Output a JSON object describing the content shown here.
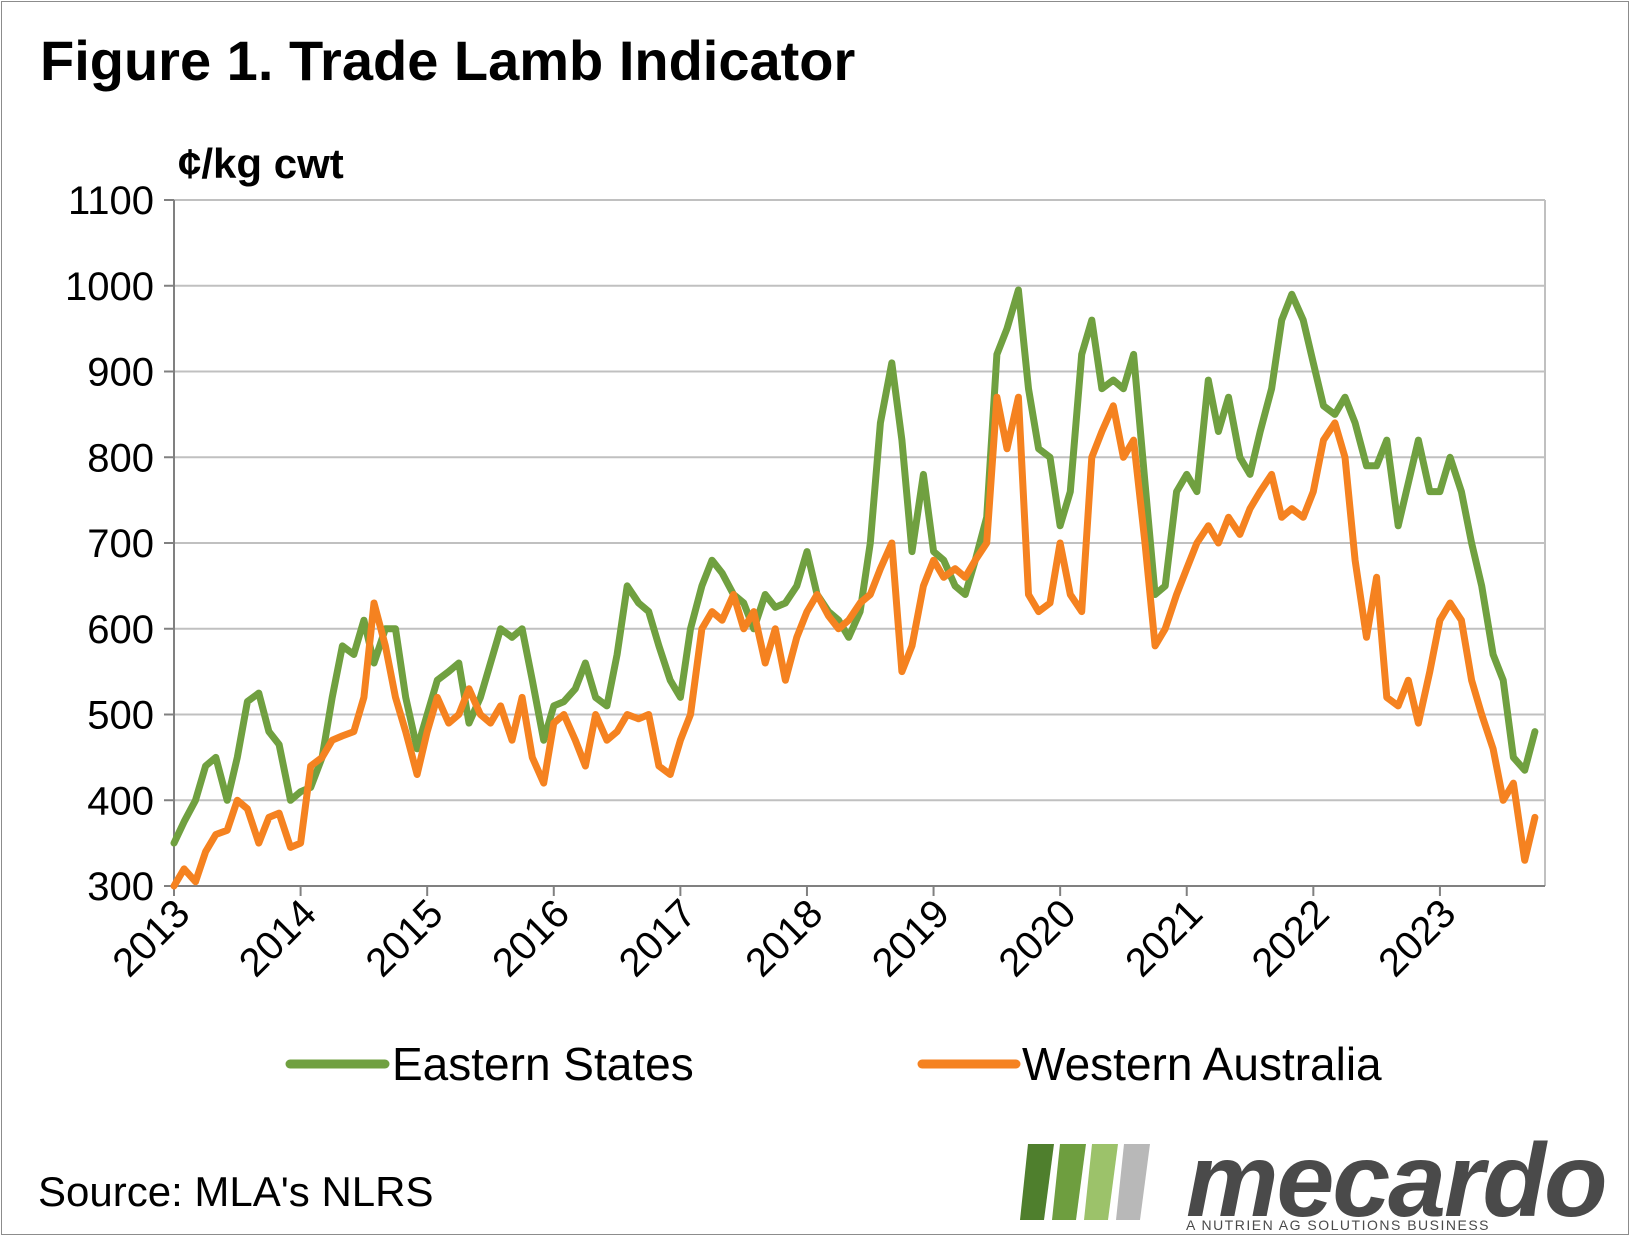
{
  "title": "Figure 1. Trade Lamb Indicator",
  "source": "Source: MLA's NLRS",
  "logo": {
    "word": "mecardo",
    "tagline": "A NUTRIEN AG SOLUTIONS BUSINESS"
  },
  "colors": {
    "eastern": "#70A040",
    "western": "#F58220",
    "grid": "#C0C0C0",
    "axis": "#808080"
  },
  "chart_data": {
    "type": "line",
    "title": "Figure 1. Trade Lamb Indicator",
    "ylabel": "¢/kg cwt",
    "xlabel": "",
    "ylim": [
      300,
      1100
    ],
    "yticks": [
      300,
      400,
      500,
      600,
      700,
      800,
      900,
      1000,
      1100
    ],
    "xlim": [
      2013,
      2023.83
    ],
    "xticks": [
      "2013",
      "2014",
      "2015",
      "2016",
      "2017",
      "2018",
      "2019",
      "2020",
      "2021",
      "2022",
      "2023"
    ],
    "grid": "horizontal",
    "legend": "bottom",
    "series": [
      {
        "name": "Eastern States",
        "color": "#70A040",
        "points": [
          [
            2013.0,
            350
          ],
          [
            2013.08,
            375
          ],
          [
            2013.17,
            400
          ],
          [
            2013.25,
            440
          ],
          [
            2013.33,
            450
          ],
          [
            2013.42,
            400
          ],
          [
            2013.5,
            450
          ],
          [
            2013.58,
            515
          ],
          [
            2013.67,
            525
          ],
          [
            2013.75,
            480
          ],
          [
            2013.83,
            465
          ],
          [
            2013.92,
            400
          ],
          [
            2014.0,
            410
          ],
          [
            2014.08,
            415
          ],
          [
            2014.17,
            450
          ],
          [
            2014.25,
            520
          ],
          [
            2014.33,
            580
          ],
          [
            2014.42,
            570
          ],
          [
            2014.5,
            610
          ],
          [
            2014.58,
            560
          ],
          [
            2014.67,
            600
          ],
          [
            2014.75,
            600
          ],
          [
            2014.83,
            520
          ],
          [
            2014.92,
            460
          ],
          [
            2015.0,
            500
          ],
          [
            2015.08,
            540
          ],
          [
            2015.17,
            550
          ],
          [
            2015.25,
            560
          ],
          [
            2015.33,
            490
          ],
          [
            2015.42,
            520
          ],
          [
            2015.5,
            560
          ],
          [
            2015.58,
            600
          ],
          [
            2015.67,
            590
          ],
          [
            2015.75,
            600
          ],
          [
            2015.83,
            540
          ],
          [
            2015.92,
            470
          ],
          [
            2016.0,
            510
          ],
          [
            2016.08,
            515
          ],
          [
            2016.17,
            530
          ],
          [
            2016.25,
            560
          ],
          [
            2016.33,
            520
          ],
          [
            2016.42,
            510
          ],
          [
            2016.5,
            570
          ],
          [
            2016.58,
            650
          ],
          [
            2016.67,
            630
          ],
          [
            2016.75,
            620
          ],
          [
            2016.83,
            580
          ],
          [
            2016.92,
            540
          ],
          [
            2017.0,
            520
          ],
          [
            2017.08,
            600
          ],
          [
            2017.17,
            650
          ],
          [
            2017.25,
            680
          ],
          [
            2017.33,
            665
          ],
          [
            2017.42,
            640
          ],
          [
            2017.5,
            630
          ],
          [
            2017.58,
            600
          ],
          [
            2017.67,
            640
          ],
          [
            2017.75,
            625
          ],
          [
            2017.83,
            630
          ],
          [
            2017.92,
            650
          ],
          [
            2018.0,
            690
          ],
          [
            2018.08,
            640
          ],
          [
            2018.17,
            620
          ],
          [
            2018.25,
            610
          ],
          [
            2018.33,
            590
          ],
          [
            2018.42,
            620
          ],
          [
            2018.5,
            700
          ],
          [
            2018.58,
            840
          ],
          [
            2018.67,
            910
          ],
          [
            2018.75,
            820
          ],
          [
            2018.83,
            690
          ],
          [
            2018.92,
            780
          ],
          [
            2019.0,
            690
          ],
          [
            2019.08,
            680
          ],
          [
            2019.17,
            650
          ],
          [
            2019.25,
            640
          ],
          [
            2019.33,
            680
          ],
          [
            2019.42,
            730
          ],
          [
            2019.5,
            920
          ],
          [
            2019.58,
            950
          ],
          [
            2019.67,
            995
          ],
          [
            2019.75,
            880
          ],
          [
            2019.83,
            810
          ],
          [
            2019.92,
            800
          ],
          [
            2020.0,
            720
          ],
          [
            2020.08,
            760
          ],
          [
            2020.17,
            920
          ],
          [
            2020.25,
            960
          ],
          [
            2020.33,
            880
          ],
          [
            2020.42,
            890
          ],
          [
            2020.5,
            880
          ],
          [
            2020.58,
            920
          ],
          [
            2020.67,
            770
          ],
          [
            2020.75,
            640
          ],
          [
            2020.83,
            650
          ],
          [
            2020.92,
            760
          ],
          [
            2021.0,
            780
          ],
          [
            2021.08,
            760
          ],
          [
            2021.17,
            890
          ],
          [
            2021.25,
            830
          ],
          [
            2021.33,
            870
          ],
          [
            2021.42,
            800
          ],
          [
            2021.5,
            780
          ],
          [
            2021.58,
            830
          ],
          [
            2021.67,
            880
          ],
          [
            2021.75,
            960
          ],
          [
            2021.83,
            990
          ],
          [
            2021.92,
            960
          ],
          [
            2022.0,
            910
          ],
          [
            2022.08,
            860
          ],
          [
            2022.17,
            850
          ],
          [
            2022.25,
            870
          ],
          [
            2022.33,
            840
          ],
          [
            2022.42,
            790
          ],
          [
            2022.5,
            790
          ],
          [
            2022.58,
            820
          ],
          [
            2022.67,
            720
          ],
          [
            2022.75,
            770
          ],
          [
            2022.83,
            820
          ],
          [
            2022.92,
            760
          ],
          [
            2023.0,
            760
          ],
          [
            2023.08,
            800
          ],
          [
            2023.17,
            760
          ],
          [
            2023.25,
            700
          ],
          [
            2023.33,
            650
          ],
          [
            2023.42,
            570
          ],
          [
            2023.5,
            540
          ],
          [
            2023.58,
            450
          ],
          [
            2023.67,
            435
          ],
          [
            2023.75,
            480
          ]
        ]
      },
      {
        "name": "Western Australia",
        "color": "#F58220",
        "points": [
          [
            2013.0,
            300
          ],
          [
            2013.08,
            320
          ],
          [
            2013.17,
            305
          ],
          [
            2013.25,
            340
          ],
          [
            2013.33,
            360
          ],
          [
            2013.42,
            365
          ],
          [
            2013.5,
            400
          ],
          [
            2013.58,
            390
          ],
          [
            2013.67,
            350
          ],
          [
            2013.75,
            380
          ],
          [
            2013.83,
            385
          ],
          [
            2013.92,
            345
          ],
          [
            2014.0,
            350
          ],
          [
            2014.08,
            440
          ],
          [
            2014.17,
            450
          ],
          [
            2014.25,
            470
          ],
          [
            2014.33,
            475
          ],
          [
            2014.42,
            480
          ],
          [
            2014.5,
            520
          ],
          [
            2014.58,
            630
          ],
          [
            2014.67,
            580
          ],
          [
            2014.75,
            520
          ],
          [
            2014.83,
            480
          ],
          [
            2014.92,
            430
          ],
          [
            2015.0,
            480
          ],
          [
            2015.08,
            520
          ],
          [
            2015.17,
            490
          ],
          [
            2015.25,
            500
          ],
          [
            2015.33,
            530
          ],
          [
            2015.42,
            500
          ],
          [
            2015.5,
            490
          ],
          [
            2015.58,
            510
          ],
          [
            2015.67,
            470
          ],
          [
            2015.75,
            520
          ],
          [
            2015.83,
            450
          ],
          [
            2015.92,
            420
          ],
          [
            2016.0,
            490
          ],
          [
            2016.08,
            500
          ],
          [
            2016.17,
            470
          ],
          [
            2016.25,
            440
          ],
          [
            2016.33,
            500
          ],
          [
            2016.42,
            470
          ],
          [
            2016.5,
            480
          ],
          [
            2016.58,
            500
          ],
          [
            2016.67,
            495
          ],
          [
            2016.75,
            500
          ],
          [
            2016.83,
            440
          ],
          [
            2016.92,
            430
          ],
          [
            2017.0,
            470
          ],
          [
            2017.08,
            500
          ],
          [
            2017.17,
            600
          ],
          [
            2017.25,
            620
          ],
          [
            2017.33,
            610
          ],
          [
            2017.42,
            640
          ],
          [
            2017.5,
            600
          ],
          [
            2017.58,
            620
          ],
          [
            2017.67,
            560
          ],
          [
            2017.75,
            600
          ],
          [
            2017.83,
            540
          ],
          [
            2017.92,
            590
          ],
          [
            2018.0,
            620
          ],
          [
            2018.08,
            640
          ],
          [
            2018.17,
            615
          ],
          [
            2018.25,
            600
          ],
          [
            2018.33,
            610
          ],
          [
            2018.42,
            630
          ],
          [
            2018.5,
            640
          ],
          [
            2018.58,
            670
          ],
          [
            2018.67,
            700
          ],
          [
            2018.75,
            550
          ],
          [
            2018.83,
            580
          ],
          [
            2018.92,
            650
          ],
          [
            2019.0,
            680
          ],
          [
            2019.08,
            660
          ],
          [
            2019.17,
            670
          ],
          [
            2019.25,
            660
          ],
          [
            2019.33,
            680
          ],
          [
            2019.42,
            700
          ],
          [
            2019.5,
            870
          ],
          [
            2019.58,
            810
          ],
          [
            2019.67,
            870
          ],
          [
            2019.75,
            640
          ],
          [
            2019.83,
            620
          ],
          [
            2019.92,
            630
          ],
          [
            2020.0,
            700
          ],
          [
            2020.08,
            640
          ],
          [
            2020.17,
            620
          ],
          [
            2020.25,
            800
          ],
          [
            2020.33,
            830
          ],
          [
            2020.42,
            860
          ],
          [
            2020.5,
            800
          ],
          [
            2020.58,
            820
          ],
          [
            2020.67,
            700
          ],
          [
            2020.75,
            580
          ],
          [
            2020.83,
            600
          ],
          [
            2020.92,
            640
          ],
          [
            2021.0,
            670
          ],
          [
            2021.08,
            700
          ],
          [
            2021.17,
            720
          ],
          [
            2021.25,
            700
          ],
          [
            2021.33,
            730
          ],
          [
            2021.42,
            710
          ],
          [
            2021.5,
            740
          ],
          [
            2021.58,
            760
          ],
          [
            2021.67,
            780
          ],
          [
            2021.75,
            730
          ],
          [
            2021.83,
            740
          ],
          [
            2021.92,
            730
          ],
          [
            2022.0,
            760
          ],
          [
            2022.08,
            820
          ],
          [
            2022.17,
            840
          ],
          [
            2022.25,
            800
          ],
          [
            2022.33,
            680
          ],
          [
            2022.42,
            590
          ],
          [
            2022.5,
            660
          ],
          [
            2022.58,
            520
          ],
          [
            2022.67,
            510
          ],
          [
            2022.75,
            540
          ],
          [
            2022.83,
            490
          ],
          [
            2022.92,
            550
          ],
          [
            2023.0,
            610
          ],
          [
            2023.08,
            630
          ],
          [
            2023.17,
            610
          ],
          [
            2023.25,
            540
          ],
          [
            2023.33,
            500
          ],
          [
            2023.42,
            460
          ],
          [
            2023.5,
            400
          ],
          [
            2023.58,
            420
          ],
          [
            2023.67,
            330
          ],
          [
            2023.75,
            380
          ]
        ]
      }
    ]
  }
}
